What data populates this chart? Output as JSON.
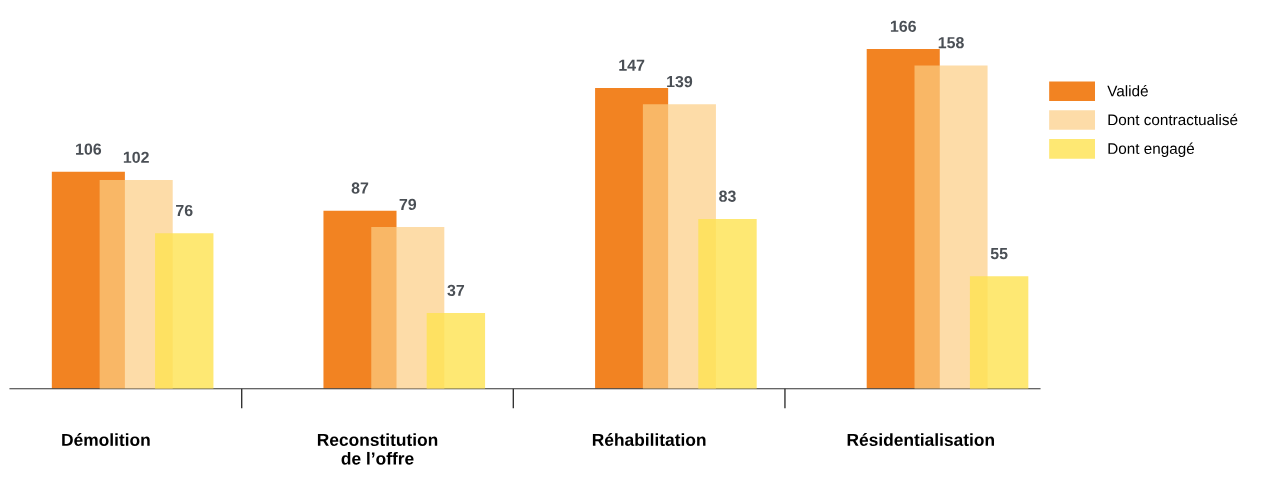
{
  "chart_data": {
    "type": "bar",
    "categories": [
      "Démolition",
      "Reconstitution\nde l’offre",
      "Réhabilitation",
      "Résidentialisation"
    ],
    "series": [
      {
        "name": "Validé",
        "color": "#f28322",
        "values": [
          106,
          87,
          147,
          166
        ]
      },
      {
        "name": "Dont contractualisé",
        "color": "#fddca8",
        "values": [
          102,
          79,
          139,
          158
        ]
      },
      {
        "name": "Dont engagé",
        "color": "#fee873",
        "values": [
          76,
          37,
          83,
          55
        ]
      }
    ],
    "data_labels": true,
    "legend": "right"
  }
}
